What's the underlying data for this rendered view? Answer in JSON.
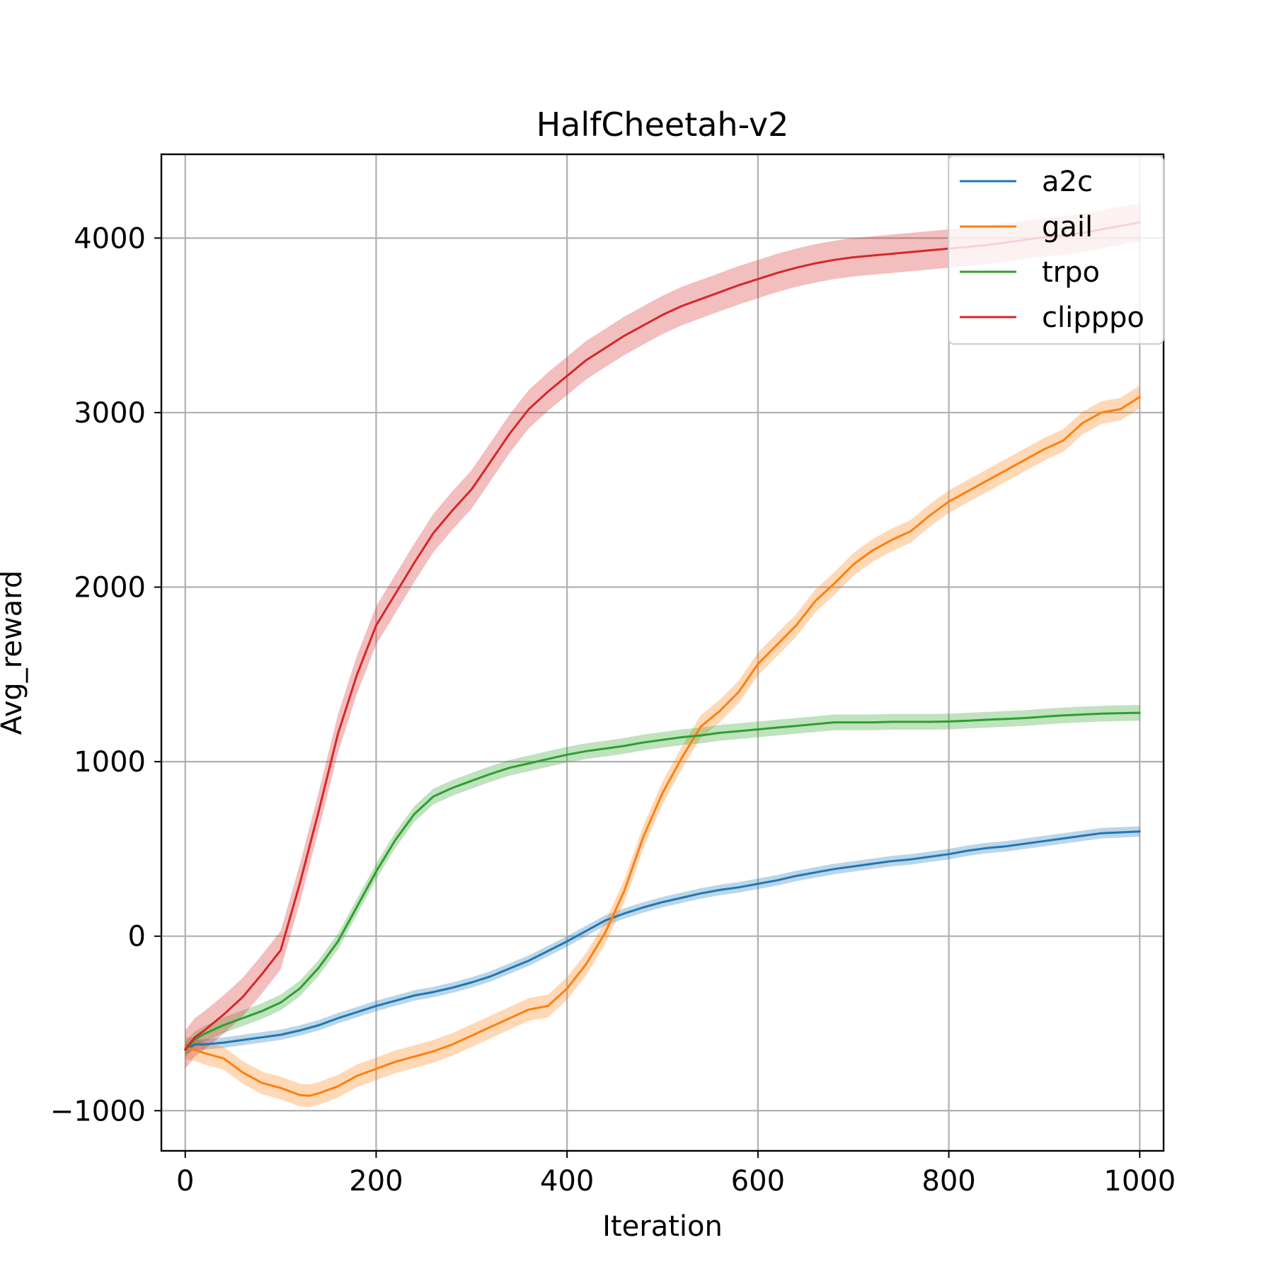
{
  "chart_data": {
    "type": "line",
    "title": "HalfCheetah-v2",
    "xlabel": "Iteration",
    "ylabel": "Avg_reward",
    "xlim": [
      -25,
      1025
    ],
    "ylim": [
      -1230,
      4480
    ],
    "xticks": [
      0,
      200,
      400,
      600,
      800,
      1000
    ],
    "xtick_labels": [
      "0",
      "200",
      "400",
      "600",
      "800",
      "1000"
    ],
    "yticks": [
      -1000,
      0,
      1000,
      2000,
      3000,
      4000
    ],
    "ytick_labels": [
      "−1000",
      "0",
      "1000",
      "2000",
      "3000",
      "4000"
    ],
    "grid": true,
    "legend_position": "top-right",
    "series": [
      {
        "name": "a2c",
        "color": "#1f77b4",
        "band_halfwidth": 30,
        "x": [
          0,
          10,
          20,
          40,
          60,
          80,
          100,
          120,
          140,
          160,
          180,
          200,
          220,
          240,
          260,
          280,
          300,
          320,
          340,
          360,
          380,
          400,
          420,
          440,
          460,
          480,
          500,
          520,
          540,
          560,
          580,
          600,
          620,
          640,
          660,
          680,
          700,
          720,
          740,
          760,
          780,
          800,
          820,
          840,
          860,
          880,
          900,
          920,
          940,
          960,
          980,
          1000
        ],
        "y": [
          -650,
          -620,
          -620,
          -610,
          -595,
          -580,
          -565,
          -540,
          -510,
          -470,
          -435,
          -400,
          -370,
          -340,
          -320,
          -295,
          -265,
          -230,
          -185,
          -140,
          -85,
          -30,
          30,
          90,
          130,
          165,
          195,
          220,
          245,
          265,
          280,
          300,
          320,
          345,
          365,
          385,
          400,
          415,
          430,
          440,
          455,
          470,
          490,
          505,
          515,
          530,
          545,
          560,
          575,
          590,
          595,
          600
        ]
      },
      {
        "name": "gail",
        "color": "#ff7f0e",
        "band_halfwidth": 65,
        "x": [
          0,
          10,
          20,
          40,
          60,
          80,
          100,
          120,
          130,
          140,
          160,
          180,
          200,
          220,
          240,
          260,
          280,
          300,
          320,
          340,
          360,
          380,
          400,
          420,
          440,
          460,
          480,
          500,
          520,
          540,
          560,
          580,
          600,
          620,
          640,
          660,
          680,
          700,
          720,
          740,
          760,
          780,
          800,
          820,
          840,
          860,
          880,
          900,
          920,
          940,
          960,
          980,
          1000
        ],
        "y": [
          -640,
          -650,
          -670,
          -700,
          -780,
          -840,
          -870,
          -910,
          -915,
          -900,
          -860,
          -800,
          -760,
          -720,
          -690,
          -660,
          -620,
          -570,
          -520,
          -470,
          -420,
          -400,
          -300,
          -160,
          20,
          260,
          570,
          820,
          1020,
          1200,
          1290,
          1400,
          1560,
          1670,
          1780,
          1920,
          2020,
          2130,
          2210,
          2270,
          2320,
          2410,
          2490,
          2550,
          2610,
          2670,
          2730,
          2790,
          2840,
          2940,
          3000,
          3020,
          3090
        ]
      },
      {
        "name": "trpo",
        "color": "#2ca02c",
        "band_halfwidth": 45,
        "x": [
          0,
          10,
          20,
          40,
          60,
          80,
          100,
          120,
          140,
          160,
          180,
          200,
          220,
          240,
          260,
          280,
          300,
          320,
          340,
          360,
          380,
          400,
          420,
          440,
          460,
          480,
          500,
          520,
          540,
          560,
          580,
          600,
          620,
          640,
          660,
          680,
          700,
          720,
          740,
          760,
          780,
          800,
          820,
          840,
          860,
          880,
          900,
          920,
          940,
          960,
          980,
          1000
        ],
        "y": [
          -650,
          -590,
          -560,
          -510,
          -470,
          -430,
          -380,
          -300,
          -180,
          -30,
          170,
          370,
          550,
          700,
          800,
          850,
          890,
          930,
          965,
          990,
          1015,
          1040,
          1060,
          1075,
          1090,
          1110,
          1125,
          1140,
          1150,
          1165,
          1175,
          1185,
          1195,
          1205,
          1215,
          1225,
          1225,
          1225,
          1228,
          1228,
          1228,
          1230,
          1235,
          1240,
          1245,
          1250,
          1258,
          1265,
          1270,
          1275,
          1278,
          1280
        ]
      },
      {
        "name": "clipppo",
        "color": "#d62728",
        "band_halfwidth": 110,
        "x": [
          0,
          10,
          20,
          40,
          60,
          80,
          100,
          120,
          140,
          160,
          180,
          200,
          220,
          240,
          260,
          280,
          300,
          320,
          340,
          360,
          380,
          400,
          420,
          440,
          460,
          480,
          500,
          520,
          540,
          560,
          580,
          600,
          620,
          640,
          660,
          680,
          700,
          720,
          740,
          760,
          780,
          800,
          820,
          840,
          860,
          880,
          900,
          920,
          940,
          960,
          980,
          1000
        ],
        "y": [
          -650,
          -580,
          -540,
          -450,
          -350,
          -220,
          -80,
          300,
          720,
          1160,
          1500,
          1780,
          1960,
          2140,
          2310,
          2440,
          2560,
          2720,
          2880,
          3020,
          3120,
          3210,
          3300,
          3370,
          3440,
          3500,
          3560,
          3610,
          3650,
          3690,
          3730,
          3765,
          3800,
          3830,
          3855,
          3875,
          3890,
          3900,
          3910,
          3920,
          3930,
          3940,
          3950,
          3960,
          3975,
          3990,
          4005,
          4015,
          4030,
          4050,
          4070,
          4090
        ]
      }
    ]
  }
}
